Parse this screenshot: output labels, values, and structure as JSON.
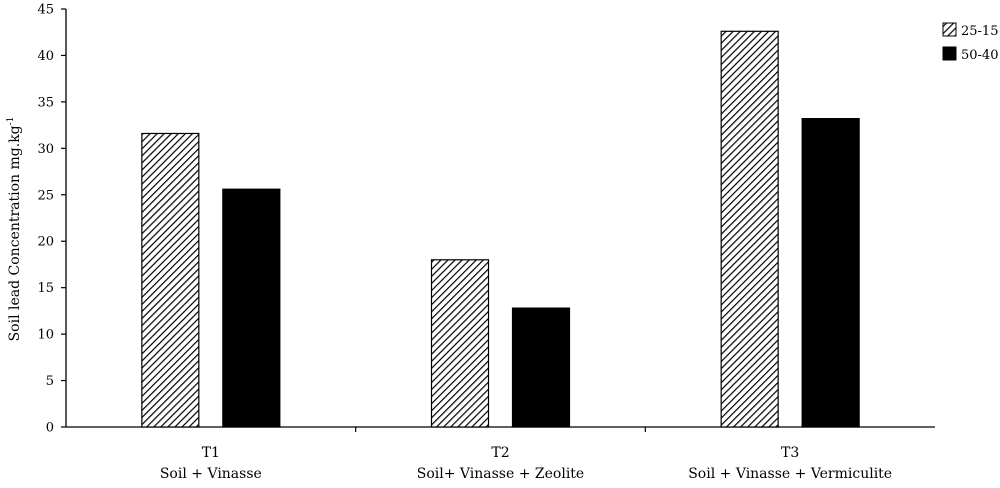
{
  "chart_data": {
    "type": "bar",
    "categories": [
      {
        "code": "T1",
        "label": "Soil + Vinasse"
      },
      {
        "code": "T2",
        "label": "Soil+ Vinasse + Zeolite"
      },
      {
        "code": "T3",
        "label": "Soil + Vinasse + Vermiculite"
      }
    ],
    "series": [
      {
        "name": "25-15",
        "values": [
          31.6,
          18.0,
          42.6
        ],
        "color": "#000000",
        "fill": "hatched"
      },
      {
        "name": "50-40",
        "values": [
          25.6,
          12.8,
          33.2
        ],
        "color": "#000000",
        "fill": "solid"
      }
    ],
    "ylabel": "Soil lead Concentration mg.kg",
    "ylabel_superscript": "-1",
    "ylim": [
      0,
      45
    ],
    "yticks": [
      0,
      5,
      10,
      15,
      20,
      25,
      30,
      35,
      40,
      45
    ],
    "grid": false,
    "legend_position": "top-right"
  }
}
